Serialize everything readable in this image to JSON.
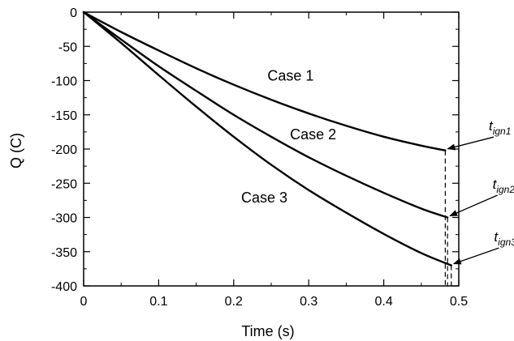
{
  "chart_data": {
    "type": "line",
    "title": "",
    "xlabel": "Time (s)",
    "ylabel": "Q (C)",
    "xlim": [
      0,
      0.5
    ],
    "ylim": [
      -400,
      0
    ],
    "xticks": [
      0,
      0.1,
      0.2,
      0.3,
      0.4,
      0.5
    ],
    "xtick_labels": [
      "0",
      "0.1",
      "0.2",
      "0.3",
      "0.4",
      "0.5"
    ],
    "yticks": [
      0,
      -50,
      -100,
      -150,
      -200,
      -250,
      -300,
      -350,
      -400
    ],
    "ytick_labels": [
      "0",
      "-50",
      "-100",
      "-150",
      "-200",
      "-250",
      "-300",
      "-350",
      "-400"
    ],
    "grid": false,
    "series": [
      {
        "name": "Case 1",
        "x": [
          0,
          0.05,
          0.1,
          0.15,
          0.2,
          0.25,
          0.3,
          0.35,
          0.4,
          0.45,
          0.482
        ],
        "y": [
          0,
          -29,
          -56,
          -82,
          -106,
          -128,
          -148,
          -166,
          -182,
          -195,
          -202
        ]
      },
      {
        "name": "Case 2",
        "x": [
          0,
          0.05,
          0.1,
          0.15,
          0.2,
          0.25,
          0.3,
          0.35,
          0.4,
          0.45,
          0.485
        ],
        "y": [
          0,
          -40,
          -79,
          -115,
          -150,
          -182,
          -212,
          -239,
          -264,
          -287,
          -300
        ]
      },
      {
        "name": "Case 3",
        "x": [
          0,
          0.05,
          0.1,
          0.15,
          0.2,
          0.25,
          0.3,
          0.35,
          0.4,
          0.45,
          0.49
        ],
        "y": [
          0,
          -45,
          -92,
          -138,
          -182,
          -223,
          -260,
          -293,
          -324,
          -352,
          -370
        ]
      }
    ],
    "case_labels": [
      {
        "text": "Case 1",
        "series": "Case 1"
      },
      {
        "text": "Case 2",
        "series": "Case 2"
      },
      {
        "text": "Case 3",
        "series": "Case 3"
      }
    ],
    "ignition_markers": [
      {
        "t": "t",
        "sub": "ign1",
        "x": 0.482,
        "y": -202
      },
      {
        "t": "t",
        "sub": "ign2",
        "x": 0.485,
        "y": -300
      },
      {
        "t": "t",
        "sub": "ign3",
        "x": 0.49,
        "y": -370
      }
    ]
  }
}
